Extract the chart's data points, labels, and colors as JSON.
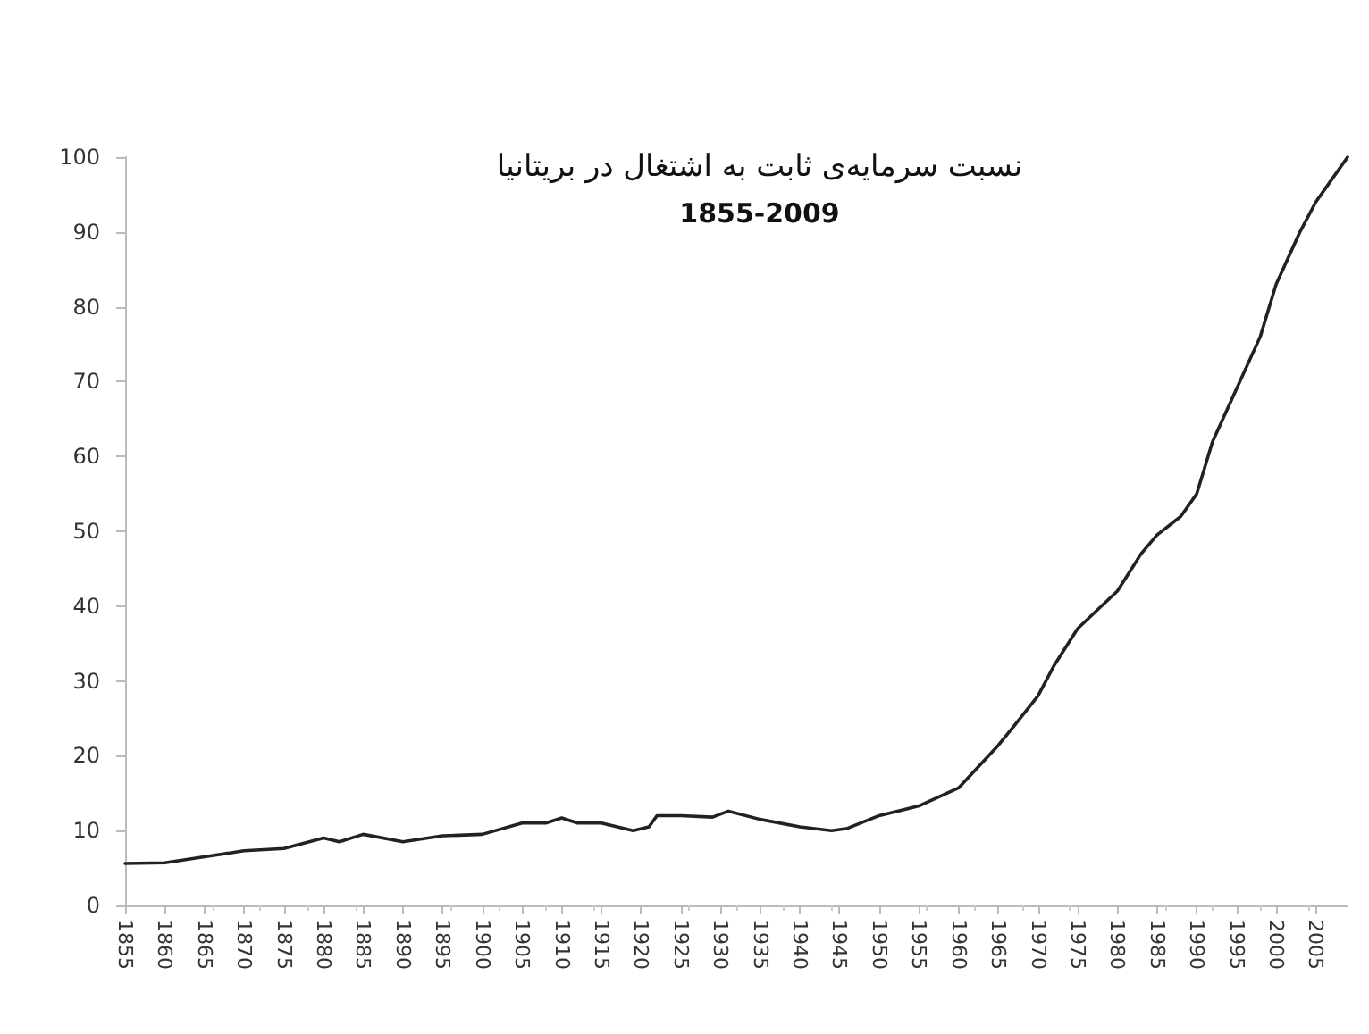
{
  "chart_data": {
    "type": "line",
    "title": "نسبت سرمایه‌ی ثابت به اشتغال در بریتانیا",
    "subtitle": "1855-2009",
    "x": [
      1855,
      1860,
      1865,
      1870,
      1875,
      1880,
      1882,
      1885,
      1890,
      1895,
      1900,
      1905,
      1908,
      1910,
      1912,
      1915,
      1919,
      1921,
      1922,
      1925,
      1929,
      1931,
      1935,
      1940,
      1944,
      1946,
      1950,
      1955,
      1960,
      1965,
      1967,
      1970,
      1972,
      1975,
      1978,
      1980,
      1983,
      1985,
      1988,
      1990,
      1992,
      1995,
      1998,
      2000,
      2003,
      2005,
      2007,
      2009
    ],
    "series": [
      {
        "color": "#222222",
        "values": [
          5.6,
          5.7,
          6.5,
          7.3,
          7.6,
          9,
          8.5,
          9.5,
          8.5,
          9.3,
          9.5,
          11,
          11,
          11.7,
          11,
          11,
          10,
          10.5,
          12,
          12,
          11.8,
          12.6,
          11.5,
          10.5,
          10,
          10.3,
          12,
          13.3,
          15.7,
          21.4,
          24,
          28,
          32,
          37,
          40,
          42,
          47,
          49.5,
          52,
          55,
          62,
          69,
          76,
          83,
          90,
          94,
          97,
          100
        ]
      }
    ],
    "xlim": [
      1855,
      2009
    ],
    "xticks": [
      1855,
      1860,
      1865,
      1870,
      1875,
      1880,
      1885,
      1890,
      1895,
      1900,
      1905,
      1910,
      1915,
      1920,
      1925,
      1930,
      1935,
      1940,
      1945,
      1950,
      1955,
      1960,
      1965,
      1970,
      1975,
      1980,
      1985,
      1990,
      1995,
      2000,
      2005
    ],
    "ylim": [
      0,
      100
    ],
    "yticks": [
      0,
      10,
      20,
      30,
      40,
      50,
      60,
      70,
      80,
      90,
      100
    ],
    "grid": false,
    "marker": "none",
    "line_style": "solid"
  }
}
